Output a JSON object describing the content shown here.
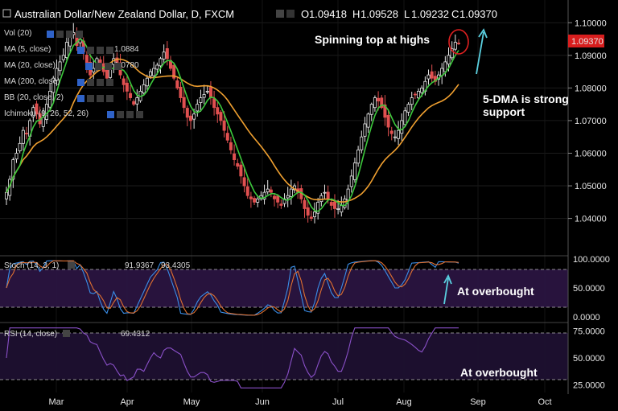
{
  "header": {
    "title": "Australian Dollar/New Zealand Dollar, D, FXCM",
    "open_label": "O",
    "open": "1.09418",
    "high_label": "H",
    "high": "1.09528",
    "low_label": "L",
    "low": "1.09232",
    "close_label": "C",
    "close": "1.09370"
  },
  "indicators": [
    {
      "label": "Vol (20)"
    },
    {
      "label": "MA (5, close)",
      "value": "1.0884"
    },
    {
      "label": "MA (20, close)",
      "value": "1.0780"
    },
    {
      "label": "MA (200, close)"
    },
    {
      "label": "BB (20, close, 2)"
    },
    {
      "label": "Ichimoku (9, 26, 52, 26)"
    }
  ],
  "annotations": {
    "spinning_top": "Spinning top at highs",
    "dma_1": "5-DMA is strong",
    "dma_2": "support",
    "stoch_ob": "At overbought",
    "rsi_ob": "At overbought"
  },
  "colors": {
    "up": "#e8e8e8",
    "down": "#e05050",
    "ma5": "#3cc83c",
    "ma20": "#f0a030",
    "stoch_k": "#3a8ee8",
    "stoch_d": "#e07030",
    "rsi": "#8a50c8",
    "osc_bg": "#2a1440",
    "price_tag": "#d81e1e",
    "arrow": "#5ad0e0",
    "circle": "#e02020"
  },
  "price_tag": "1.09370",
  "chart_data": {
    "type": "candlestick",
    "x_tick_labels": [
      "Mar",
      "Apr",
      "May",
      "Jun",
      "Jul",
      "Aug",
      "Sep",
      "Oct"
    ],
    "y_ticks": [
      "1.10000",
      "1.09000",
      "1.08000",
      "1.07000",
      "1.06000",
      "1.05000",
      "1.04000"
    ],
    "y_range": [
      1.033,
      1.1045
    ],
    "close_series": [
      1.048,
      1.052,
      1.058,
      1.06,
      1.063,
      1.067,
      1.066,
      1.07,
      1.074,
      1.072,
      1.069,
      1.071,
      1.075,
      1.079,
      1.083,
      1.086,
      1.088,
      1.09,
      1.094,
      1.096,
      1.097,
      1.093,
      1.095,
      1.091,
      1.087,
      1.084,
      1.086,
      1.089,
      1.087,
      1.085,
      1.083,
      1.086,
      1.089,
      1.087,
      1.084,
      1.081,
      1.079,
      1.077,
      1.075,
      1.077,
      1.079,
      1.081,
      1.083,
      1.085,
      1.086,
      1.087,
      1.089,
      1.091,
      1.089,
      1.086,
      1.083,
      1.08,
      1.077,
      1.074,
      1.071,
      1.07,
      1.072,
      1.075,
      1.077,
      1.078,
      1.079,
      1.077,
      1.074,
      1.072,
      1.07,
      1.067,
      1.064,
      1.061,
      1.058,
      1.056,
      1.053,
      1.05,
      1.047,
      1.046,
      1.045,
      1.046,
      1.047,
      1.048,
      1.049,
      1.048,
      1.046,
      1.045,
      1.044,
      1.046,
      1.047,
      1.049,
      1.05,
      1.048,
      1.046,
      1.043,
      1.041,
      1.04,
      1.042,
      1.045,
      1.047,
      1.048,
      1.046,
      1.044,
      1.043,
      1.043,
      1.044,
      1.046,
      1.049,
      1.053,
      1.057,
      1.061,
      1.065,
      1.069,
      1.072,
      1.075,
      1.077,
      1.076,
      1.074,
      1.071,
      1.068,
      1.066,
      1.065,
      1.067,
      1.07,
      1.073,
      1.075,
      1.077,
      1.078,
      1.079,
      1.08,
      1.082,
      1.084,
      1.083,
      1.082,
      1.084,
      1.086,
      1.088,
      1.09,
      1.092,
      1.094,
      1.0937
    ],
    "stoch": {
      "label": "Stoch (14, 3, 1)",
      "k_value": "91.9367",
      "d_value": "93.4305",
      "y_ticks": [
        "100.0000",
        "50.0000",
        "0.0000"
      ],
      "levels": [
        80,
        20
      ]
    },
    "rsi": {
      "label": "RSI (14, close)",
      "value": "69.4312",
      "y_ticks": [
        "75.0000",
        "50.0000",
        "25.0000"
      ],
      "levels": [
        70,
        30
      ]
    }
  }
}
